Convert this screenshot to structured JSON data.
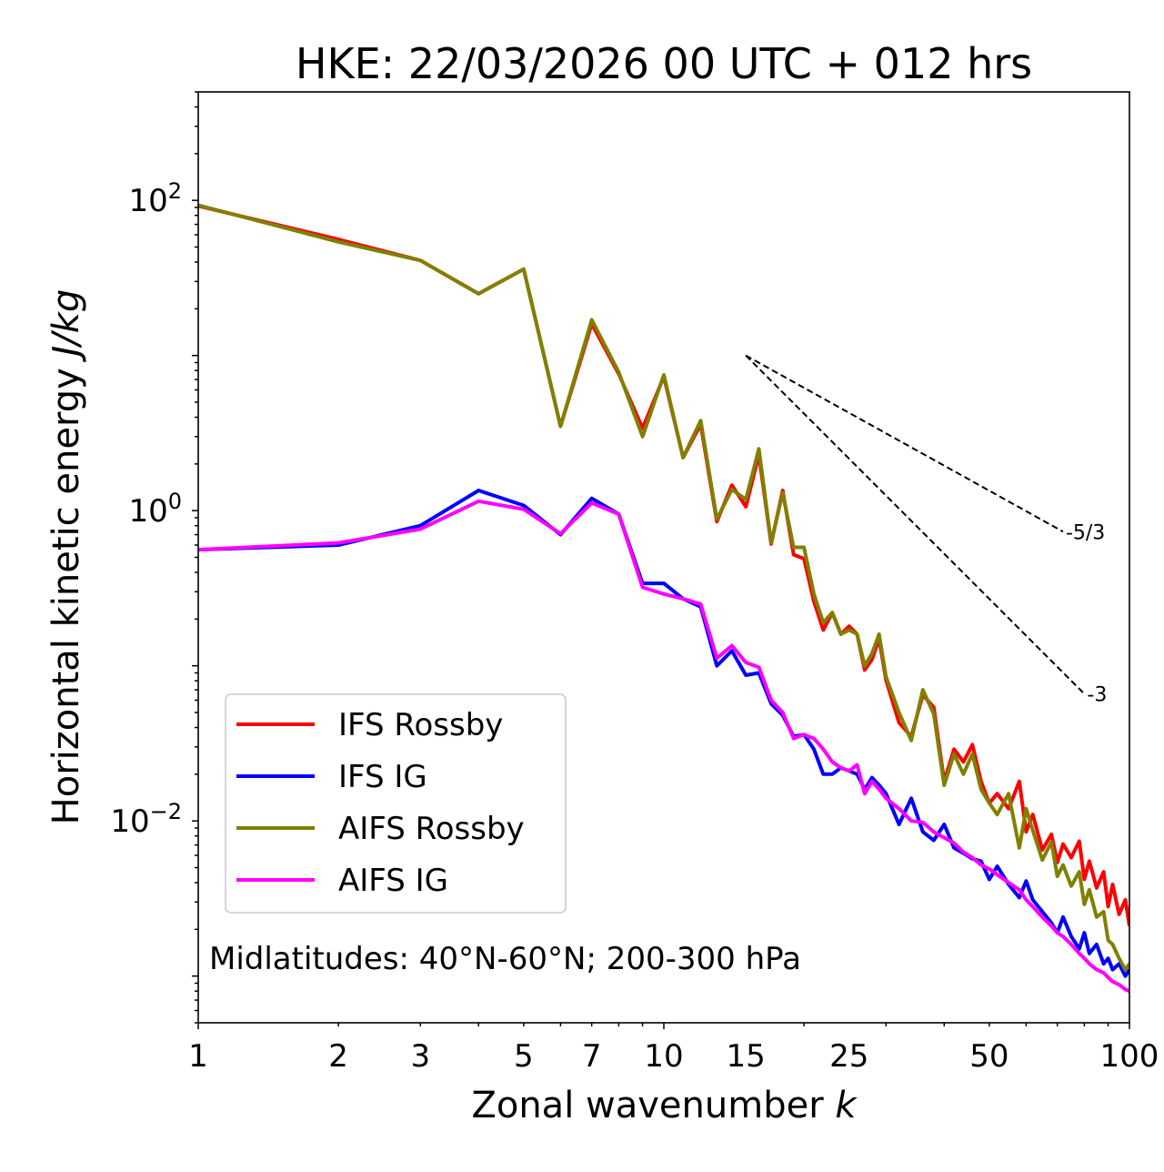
{
  "chart_data": {
    "type": "line",
    "title": "HKE: 22/03/2026 00 UTC + 012 hrs",
    "xlabel": "Zonal wavenumber ",
    "xlabel_italic": "k",
    "ylabel": "Horizontal kinetic energy ",
    "ylabel_italic": "J/kg",
    "xscale": "log",
    "yscale": "log",
    "xlim": [
      1,
      100
    ],
    "ylim": [
      0.0005,
      500
    ],
    "x_ticks": [
      {
        "value": 1,
        "label": "1"
      },
      {
        "value": 2,
        "label": "2"
      },
      {
        "value": 3,
        "label": "3"
      },
      {
        "value": 5,
        "label": "5"
      },
      {
        "value": 7,
        "label": "7"
      },
      {
        "value": 10,
        "label": "10"
      },
      {
        "value": 15,
        "label": "15"
      },
      {
        "value": 25,
        "label": "25"
      },
      {
        "value": 50,
        "label": "50"
      },
      {
        "value": 100,
        "label": "100"
      }
    ],
    "y_ticks": [
      {
        "value": 100,
        "base": "10",
        "exp": "2"
      },
      {
        "value": 1,
        "base": "10",
        "exp": "0"
      },
      {
        "value": 0.01,
        "base": "10",
        "exp": "−2"
      }
    ],
    "annotation": "Midlatitudes: 40°N-60°N; 200-300 hPa",
    "legend_position": "lower-left",
    "series": [
      {
        "name": "IFS Rossby",
        "color": "#ff0000",
        "x": [
          1,
          2,
          3,
          4,
          5,
          6,
          7,
          8,
          9,
          10,
          11,
          12,
          13,
          14,
          15,
          16,
          17,
          18,
          19,
          20,
          21,
          22,
          23,
          24,
          25,
          26,
          27,
          28,
          29,
          30,
          32,
          34,
          36,
          38,
          40,
          42,
          44,
          46,
          48,
          50,
          52,
          55,
          58,
          60,
          62,
          65,
          68,
          70,
          72,
          75,
          78,
          80,
          82,
          85,
          88,
          90,
          92,
          95,
          98,
          100
        ],
        "y": [
          92,
          56,
          41,
          25,
          36,
          3.5,
          16,
          7.6,
          3.4,
          7.3,
          2.2,
          3.6,
          0.85,
          1.46,
          1.06,
          2.3,
          0.61,
          1.35,
          0.52,
          0.49,
          0.26,
          0.17,
          0.22,
          0.16,
          0.18,
          0.16,
          0.094,
          0.11,
          0.15,
          0.081,
          0.043,
          0.035,
          0.065,
          0.054,
          0.018,
          0.029,
          0.024,
          0.031,
          0.018,
          0.013,
          0.015,
          0.012,
          0.018,
          0.0085,
          0.011,
          0.0065,
          0.0082,
          0.0054,
          0.0071,
          0.0058,
          0.0074,
          0.0042,
          0.0055,
          0.0037,
          0.0047,
          0.0028,
          0.0039,
          0.0025,
          0.0031,
          0.0021
        ]
      },
      {
        "name": "IFS IG",
        "color": "#0000ff",
        "x": [
          1,
          2,
          3,
          4,
          5,
          6,
          7,
          8,
          9,
          10,
          11,
          12,
          13,
          14,
          15,
          16,
          17,
          18,
          19,
          20,
          21,
          22,
          23,
          24,
          25,
          26,
          27,
          28,
          29,
          30,
          32,
          34,
          36,
          38,
          40,
          42,
          44,
          46,
          48,
          50,
          52,
          55,
          58,
          60,
          62,
          65,
          68,
          70,
          72,
          75,
          78,
          80,
          82,
          85,
          88,
          90,
          92,
          95,
          98,
          100
        ],
        "y": [
          0.56,
          0.6,
          0.8,
          1.35,
          1.08,
          0.7,
          1.2,
          0.95,
          0.34,
          0.34,
          0.27,
          0.24,
          0.1,
          0.125,
          0.087,
          0.09,
          0.057,
          0.048,
          0.035,
          0.036,
          0.029,
          0.02,
          0.02,
          0.022,
          0.021,
          0.02,
          0.016,
          0.019,
          0.017,
          0.015,
          0.0095,
          0.014,
          0.0085,
          0.0075,
          0.0095,
          0.0067,
          0.0062,
          0.0057,
          0.0055,
          0.0042,
          0.0051,
          0.0039,
          0.0032,
          0.0041,
          0.0031,
          0.0026,
          0.0022,
          0.0019,
          0.0024,
          0.0018,
          0.0015,
          0.0019,
          0.0014,
          0.0016,
          0.0012,
          0.0013,
          0.0011,
          0.0012,
          0.001,
          0.0011
        ]
      },
      {
        "name": "AIFS Rossby",
        "color": "#808000",
        "x": [
          1,
          2,
          3,
          4,
          5,
          6,
          7,
          8,
          9,
          10,
          11,
          12,
          13,
          14,
          15,
          16,
          17,
          18,
          19,
          20,
          21,
          22,
          23,
          24,
          25,
          26,
          27,
          28,
          29,
          30,
          32,
          34,
          36,
          38,
          40,
          42,
          44,
          46,
          48,
          50,
          52,
          55,
          58,
          60,
          62,
          65,
          68,
          70,
          72,
          75,
          78,
          80,
          82,
          85,
          88,
          90,
          92,
          95,
          98,
          100
        ],
        "y": [
          93,
          54,
          41,
          25,
          36,
          3.5,
          17,
          7.8,
          3.0,
          7.5,
          2.2,
          3.8,
          0.88,
          1.37,
          1.18,
          2.5,
          0.62,
          1.3,
          0.58,
          0.58,
          0.29,
          0.19,
          0.22,
          0.16,
          0.17,
          0.16,
          0.1,
          0.12,
          0.16,
          0.085,
          0.05,
          0.033,
          0.07,
          0.049,
          0.017,
          0.027,
          0.02,
          0.027,
          0.016,
          0.013,
          0.011,
          0.015,
          0.0067,
          0.012,
          0.0087,
          0.0056,
          0.0073,
          0.0044,
          0.0052,
          0.0038,
          0.0047,
          0.0029,
          0.0036,
          0.0024,
          0.0026,
          0.0017,
          0.0016,
          0.0013,
          0.0011,
          0.0012
        ]
      },
      {
        "name": "AIFS IG",
        "color": "#ff00ff",
        "x": [
          1,
          2,
          3,
          4,
          5,
          6,
          7,
          8,
          9,
          10,
          11,
          12,
          13,
          14,
          15,
          16,
          17,
          18,
          19,
          20,
          21,
          22,
          23,
          24,
          25,
          26,
          27,
          28,
          29,
          30,
          32,
          34,
          36,
          38,
          40,
          42,
          44,
          46,
          48,
          50,
          52,
          55,
          58,
          60,
          62,
          65,
          68,
          70,
          72,
          75,
          78,
          80,
          82,
          85,
          88,
          90,
          92,
          95,
          98,
          100
        ],
        "y": [
          0.56,
          0.62,
          0.76,
          1.15,
          1.02,
          0.71,
          1.12,
          0.95,
          0.32,
          0.29,
          0.27,
          0.25,
          0.112,
          0.135,
          0.105,
          0.098,
          0.06,
          0.05,
          0.034,
          0.036,
          0.034,
          0.029,
          0.024,
          0.022,
          0.021,
          0.023,
          0.015,
          0.018,
          0.016,
          0.014,
          0.012,
          0.01,
          0.0098,
          0.0085,
          0.0078,
          0.0072,
          0.0063,
          0.0058,
          0.0052,
          0.0049,
          0.0045,
          0.004,
          0.0036,
          0.0031,
          0.0028,
          0.0024,
          0.0021,
          0.0019,
          0.0018,
          0.0016,
          0.0014,
          0.0013,
          0.0012,
          0.0011,
          0.00105,
          0.00098,
          0.00092,
          0.00088,
          0.00082,
          0.0008
        ]
      }
    ],
    "reference_lines": [
      {
        "label": "-5/3",
        "slope": -1.6667,
        "x0": 15,
        "y0": 10,
        "x1": 72,
        "color": "#000000"
      },
      {
        "label": "-3",
        "slope": -3,
        "x0": 15,
        "y0": 10,
        "x1": 80,
        "color": "#000000"
      }
    ]
  }
}
